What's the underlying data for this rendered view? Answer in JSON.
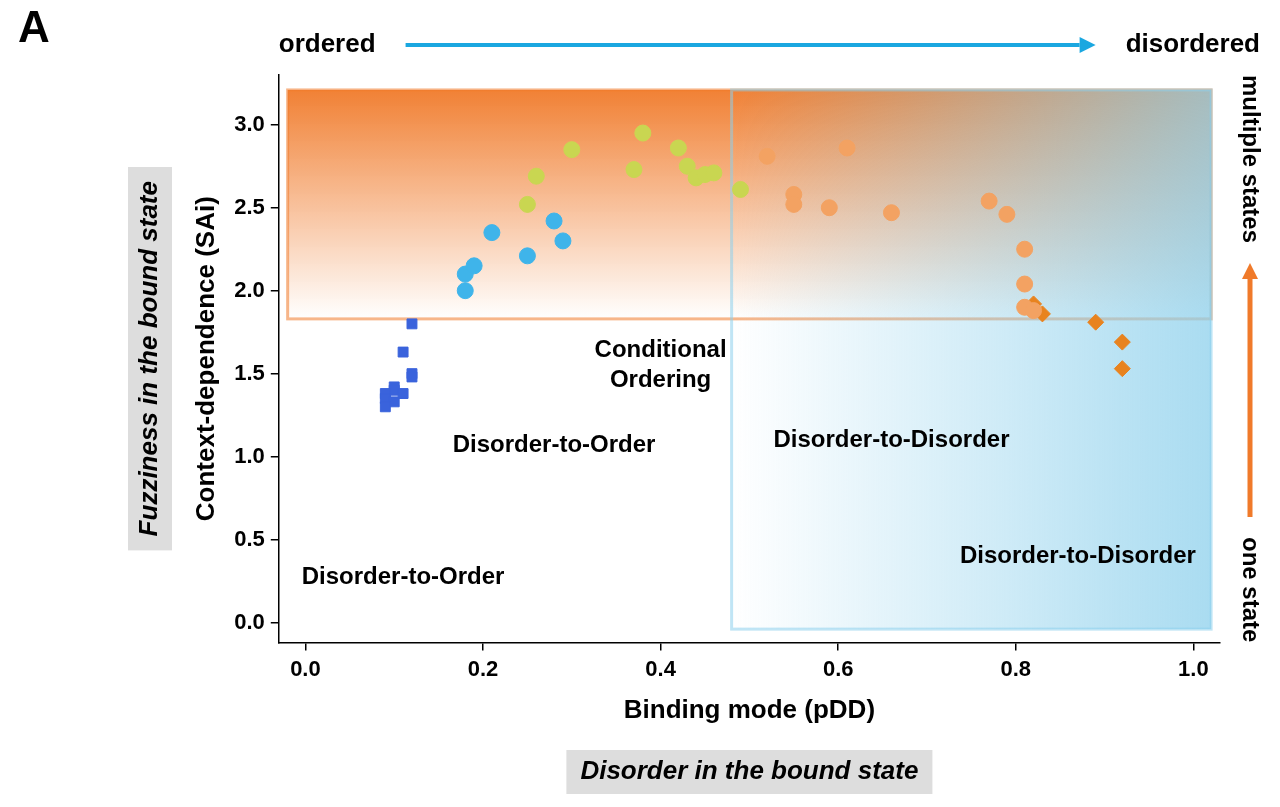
{
  "chart_data": {
    "type": "scatter",
    "panel_label": "A",
    "x_label": "Binding mode (pDD)",
    "y_label": "Context-dependence (SAi)",
    "x_group_label": "Disorder in the bound state",
    "y_group_label": "Fuzziness in the bound state",
    "x_direction_labels": [
      "ordered",
      "disordered"
    ],
    "y_direction_labels": [
      "one state",
      "multiple states"
    ],
    "xlim": [
      -0.03,
      1.03
    ],
    "ylim": [
      -0.12,
      3.3
    ],
    "xticks": [
      {
        "value": 0,
        "label": "0.0"
      },
      {
        "value": 0.2,
        "label": "0.2"
      },
      {
        "value": 0.4,
        "label": "0.4"
      },
      {
        "value": 0.6,
        "label": "0.6"
      },
      {
        "value": 0.8,
        "label": "0.8"
      },
      {
        "value": 1,
        "label": "1.0"
      }
    ],
    "yticks": [
      {
        "value": 0,
        "label": "0.0"
      },
      0.5,
      {
        "value": 1,
        "label": "1.0"
      },
      1.5,
      {
        "value": 2,
        "label": "2.0"
      },
      2.5,
      {
        "value": 3,
        "label": "3.0"
      }
    ],
    "grid": false,
    "series": [
      {
        "marker": "square",
        "color": "#3a63dc",
        "x": [
          0.12,
          0.11,
          0.12,
          0.12,
          0.1,
          0.1,
          0.09,
          0.09,
          0.1,
          0.09,
          0.11
        ],
        "values": [
          1.8,
          1.63,
          1.5,
          1.48,
          1.42,
          1.4,
          1.38,
          1.35,
          1.33,
          1.3,
          1.38
        ]
      },
      {
        "marker": "circle",
        "color": "#3fb4ea",
        "x": [
          0.18,
          0.18,
          0.19,
          0.21,
          0.25,
          0.28,
          0.29
        ],
        "values": [
          2.0,
          2.1,
          2.15,
          2.35,
          2.21,
          2.42,
          2.3
        ]
      },
      {
        "marker": "circle",
        "color": "#c9d651",
        "x": [
          0.25,
          0.26,
          0.3,
          0.37,
          0.38,
          0.42,
          0.43,
          0.44,
          0.45,
          0.46,
          0.49
        ],
        "values": [
          2.52,
          2.69,
          2.85,
          2.73,
          2.95,
          2.86,
          2.75,
          2.68,
          2.7,
          2.71,
          2.61
        ]
      },
      {
        "marker": "circle",
        "color": "#f3a262",
        "x": [
          0.52,
          0.55,
          0.55,
          0.59,
          0.61,
          0.66,
          0.77,
          0.79,
          0.81,
          0.81,
          0.81,
          0.82
        ],
        "values": [
          2.81,
          2.58,
          2.52,
          2.5,
          2.86,
          2.47,
          2.54,
          2.46,
          2.25,
          2.04,
          1.9,
          1.88
        ]
      },
      {
        "marker": "diamond",
        "color": "#e8831f",
        "x": [
          0.82,
          0.83,
          0.89,
          0.92,
          0.92
        ],
        "values": [
          1.92,
          1.86,
          1.81,
          1.69,
          1.53
        ]
      }
    ],
    "regions": [
      {
        "x": [
          -0.02,
          1.02
        ],
        "y": [
          1.83,
          3.21
        ],
        "color": "#f07a2a"
      },
      {
        "x": [
          0.48,
          1.02
        ],
        "y": [
          -0.04,
          3.21
        ],
        "color": "#8dd0ec"
      }
    ],
    "annotations": [
      {
        "text": "Disorder-to-Order",
        "x": 0.11,
        "y": 0.27
      },
      {
        "text": "Disorder-to-Order",
        "x": 0.28,
        "y": 1.07
      },
      {
        "text": "Conditional Ordering",
        "x": 0.4,
        "y": 1.55
      },
      {
        "text": "Disorder-to-Disorder",
        "x": 0.66,
        "y": 1.1
      },
      {
        "text": "Disorder-to-Disorder",
        "x": 0.87,
        "y": 0.4
      }
    ]
  }
}
